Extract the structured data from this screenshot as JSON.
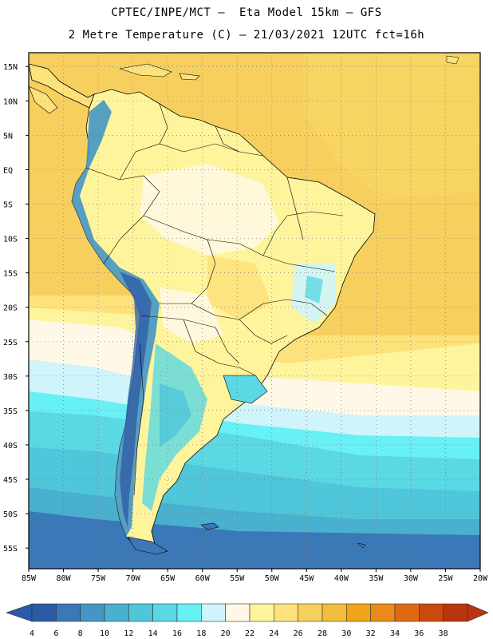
{
  "header": {
    "line1": "CPTEC/INPE/MCT –  Eta Model 15km – GFS",
    "line2": "2 Metre Temperature (C) – 21/03/2021 12UTC fct=16h"
  },
  "map": {
    "lon_range": [
      -85,
      -20
    ],
    "lat_range": [
      -58,
      17
    ],
    "lat_labels": [
      "15N",
      "10N",
      "5N",
      "EQ",
      "5S",
      "10S",
      "15S",
      "20S",
      "25S",
      "30S",
      "35S",
      "40S",
      "45S",
      "50S",
      "55S"
    ],
    "lat_values": [
      15,
      10,
      5,
      0,
      -5,
      -10,
      -15,
      -20,
      -25,
      -30,
      -35,
      -40,
      -45,
      -50,
      -55
    ],
    "lon_labels": [
      "85W",
      "80W",
      "75W",
      "70W",
      "65W",
      "60W",
      "55W",
      "50W",
      "45W",
      "40W",
      "35W",
      "30W",
      "25W",
      "20W"
    ],
    "lon_values": [
      -85,
      -80,
      -75,
      -70,
      -65,
      -60,
      -55,
      -50,
      -45,
      -40,
      -35,
      -30,
      -25,
      -20
    ],
    "grid": "dotted"
  },
  "colorbar": {
    "labels": [
      "4",
      "6",
      "8",
      "10",
      "12",
      "14",
      "16",
      "18",
      "20",
      "22",
      "24",
      "26",
      "28",
      "30",
      "32",
      "34",
      "36",
      "38"
    ],
    "colors": [
      "#2b5aa6",
      "#3a78b8",
      "#4596c5",
      "#49b0cf",
      "#4fc6d9",
      "#5ad8e3",
      "#67f0f5",
      "#cff4fb",
      "#fff8e6",
      "#fef49c",
      "#fde27c",
      "#f7d15e",
      "#f2bd3c",
      "#efa51a",
      "#ea8a1a",
      "#dd6a12",
      "#c94a0f",
      "#b8350f"
    ]
  },
  "legend_colors": {
    "ocean_tropical": "#f8d463",
    "land_warm": "#fef49c",
    "andes_cold": "#3f8cc0"
  }
}
